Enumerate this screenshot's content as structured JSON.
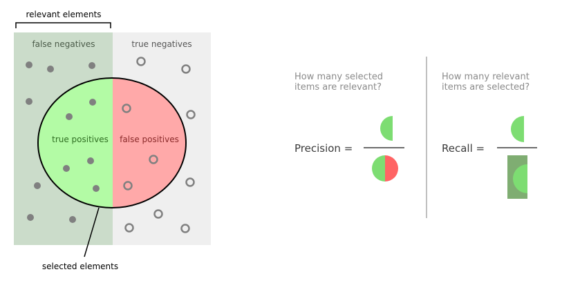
{
  "venn": {
    "relevant_elements": "relevant elements",
    "false_negatives": "false negatives",
    "true_negatives": "true negatives",
    "true_positives": "true positives",
    "false_positives": "false positives",
    "selected_elements": "selected elements"
  },
  "precision": {
    "question_line1": "How many selected",
    "question_line2": "items are relevant?",
    "label": "Precision ="
  },
  "recall": {
    "question_line1": "How many relevant",
    "question_line2": "items are selected?",
    "label": "Recall ="
  },
  "colors": {
    "relevant_bg": "#cbdcca",
    "irrelevant_bg": "#efefef",
    "true_positive_fill": "#b3fba5",
    "false_positive_fill": "#ffa9a9",
    "recall_box": "#7fad72",
    "green_half": "#7ddd72",
    "red_half": "#ff6464",
    "dot": "#808080",
    "divider": "#c0c0c0",
    "question_text": "#8a8a8a",
    "label_text": "#3a3a3a"
  }
}
